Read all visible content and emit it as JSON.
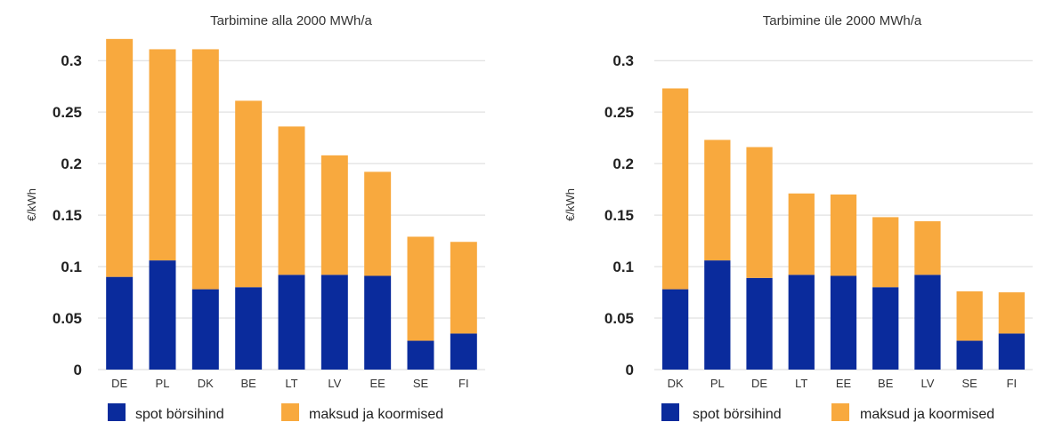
{
  "colors": {
    "spot": "#0a2b9c",
    "fees": "#f8a93e",
    "grid": "#d9d9d9"
  },
  "chart_data": [
    {
      "type": "bar",
      "stacked": true,
      "title": "Tarbimine alla 2000 MWh/a",
      "ylabel": "€/kWh",
      "ylim": [
        0,
        0.32
      ],
      "yticks": [
        0,
        0.05,
        0.1,
        0.15,
        0.2,
        0.25,
        0.3
      ],
      "ytick_labels": [
        "0",
        "0.05",
        "0.1",
        "0.15",
        "0.2",
        "0.25",
        "0.3"
      ],
      "grid": true,
      "legend": "bottom",
      "categories": [
        "DE",
        "PL",
        "DK",
        "BE",
        "LT",
        "LV",
        "EE",
        "SE",
        "FI"
      ],
      "series": [
        {
          "name": "spot börsihind",
          "color": "#0a2b9c",
          "values": [
            0.09,
            0.106,
            0.078,
            0.08,
            0.092,
            0.092,
            0.091,
            0.028,
            0.035
          ]
        },
        {
          "name": "maksud ja koormised",
          "color": "#f8a93e",
          "values": [
            0.231,
            0.205,
            0.233,
            0.181,
            0.144,
            0.116,
            0.101,
            0.101,
            0.089
          ]
        }
      ]
    },
    {
      "type": "bar",
      "stacked": true,
      "title": "Tarbimine üle 2000 MWh/a",
      "ylabel": "€/kWh",
      "ylim": [
        0,
        0.32
      ],
      "yticks": [
        0,
        0.05,
        0.1,
        0.15,
        0.2,
        0.25,
        0.3
      ],
      "ytick_labels": [
        "0",
        "0.05",
        "0.1",
        "0.15",
        "0.2",
        "0.25",
        "0.3"
      ],
      "grid": true,
      "legend": "bottom",
      "categories": [
        "DK",
        "PL",
        "DE",
        "LT",
        "EE",
        "BE",
        "LV",
        "SE",
        "FI"
      ],
      "series": [
        {
          "name": "spot börsihind",
          "color": "#0a2b9c",
          "values": [
            0.078,
            0.106,
            0.089,
            0.092,
            0.091,
            0.08,
            0.092,
            0.028,
            0.035
          ]
        },
        {
          "name": "maksud ja koormised",
          "color": "#f8a93e",
          "values": [
            0.195,
            0.117,
            0.127,
            0.079,
            0.079,
            0.068,
            0.052,
            0.048,
            0.04
          ]
        }
      ]
    }
  ]
}
